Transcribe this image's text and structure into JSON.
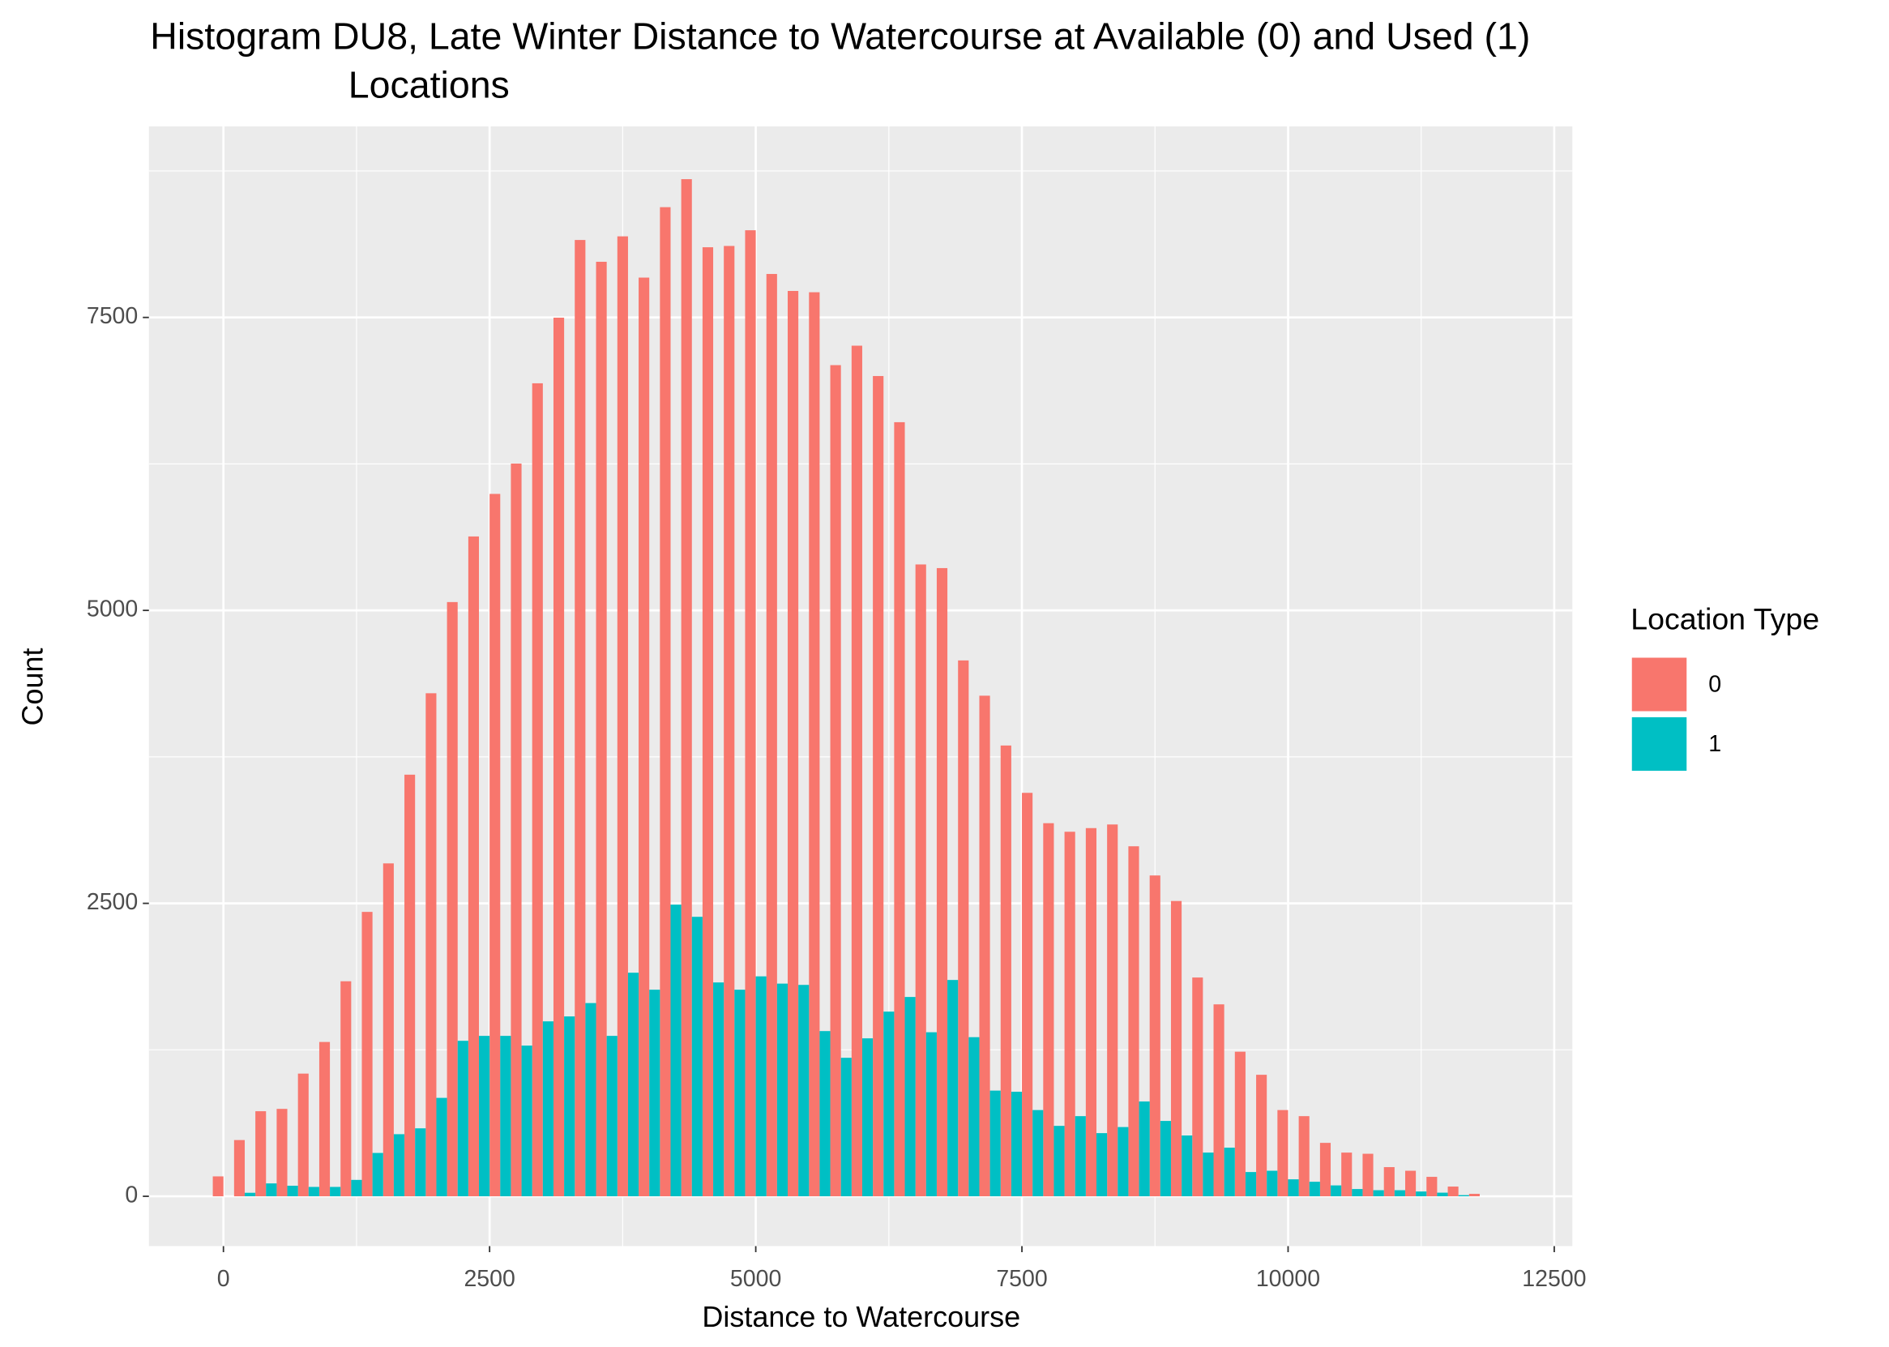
{
  "chart_data": {
    "type": "histogram",
    "title": [
      "Histogram DU8, Late Winter Distance to Watercourse at Available (0) and Used (1)",
      "Locations"
    ],
    "x_label": "Distance to Watercourse",
    "y_label": "Count",
    "legend_title": "Location Type",
    "legend_position": "right",
    "grid": true,
    "bins": [
      -100,
      100,
      300,
      500,
      700,
      900,
      1100,
      1300,
      1500,
      1700,
      1900,
      2100,
      2300,
      2500,
      2700,
      2900,
      3100,
      3300,
      3500,
      3700,
      3900,
      4100,
      4300,
      4500,
      4700,
      4900,
      5100,
      5300,
      5500,
      5700,
      5900,
      6100,
      6300,
      6500,
      6700,
      6900,
      7100,
      7300,
      7500,
      7700,
      7900,
      8100,
      8300,
      8500,
      8700,
      8900,
      9100,
      9300,
      9500,
      9700,
      9900,
      10100,
      10300,
      10500,
      10700,
      10900,
      11100,
      11300,
      11500,
      11700,
      11900
    ],
    "series": [
      {
        "name": "0",
        "color": "#F8766D",
        "values": [
          170,
          480,
          726,
          746,
          1047,
          1317,
          1835,
          2427,
          2841,
          3598,
          4293,
          5071,
          5631,
          5994,
          6253,
          6938,
          7498,
          8161,
          7975,
          8192,
          7840,
          8441,
          8680,
          8099,
          8110,
          8244,
          7871,
          7726,
          7715,
          7093,
          7259,
          7000,
          6606,
          5392,
          5361,
          4573,
          4272,
          3847,
          3443,
          3184,
          3111,
          3142,
          3173,
          2987,
          2738,
          2520,
          1867,
          1638,
          1234,
          1037,
          736,
          684,
          456,
          373,
          363,
          249,
          218,
          166,
          83,
          21
        ]
      },
      {
        "name": "1",
        "color": "#00BFC4",
        "values": [
          0,
          30,
          110,
          90,
          80,
          80,
          140,
          370,
          530,
          580,
          840,
          1327,
          1369,
          1369,
          1286,
          1493,
          1535,
          1649,
          1369,
          1908,
          1763,
          2489,
          2385,
          1825,
          1763,
          1877,
          1815,
          1804,
          1410,
          1182,
          1348,
          1576,
          1701,
          1400,
          1846,
          1358,
          902,
          892,
          736,
          601,
          684,
          539,
          591,
          809,
          643,
          519,
          373,
          415,
          207,
          218,
          145,
          124,
          93,
          62,
          52,
          52,
          41,
          31,
          10,
          0
        ]
      }
    ],
    "xlim": [
      -700,
      12670
    ],
    "ylim": [
      -425,
      9130
    ],
    "xticks": [
      0,
      2500,
      5000,
      7500,
      10000,
      12500
    ],
    "yticks": [
      0,
      2500,
      5000,
      7500
    ]
  }
}
